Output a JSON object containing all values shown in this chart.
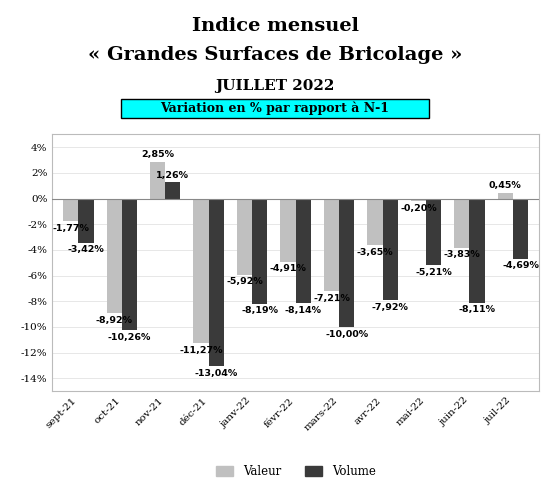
{
  "title_line1": "Indice mensuel",
  "title_line2": "« Grandes Surfaces de Bricolage »",
  "subtitle": "JUILLET 2022",
  "annotation": "Variation en % par rapport à N-1",
  "categories": [
    "sept-21",
    "oct-21",
    "nov-21",
    "déc-21",
    "janv-22",
    "févr-22",
    "mars-22",
    "avr-22",
    "mai-22",
    "juin-22",
    "juil-22"
  ],
  "valeur": [
    -1.77,
    -8.92,
    2.85,
    -11.27,
    -5.92,
    -4.91,
    -7.21,
    -3.65,
    -0.2,
    -3.83,
    0.45
  ],
  "volume": [
    -3.42,
    -10.26,
    1.26,
    -13.04,
    -8.19,
    -8.14,
    -10.0,
    -7.92,
    -5.21,
    -8.11,
    -4.69
  ],
  "valeur_color": "#c0c0c0",
  "volume_color": "#3a3a3a",
  "bar_width": 0.35,
  "ylim_min": -15,
  "ylim_max": 5,
  "yticks": [
    -14,
    -12,
    -10,
    -8,
    -6,
    -4,
    -2,
    0,
    2,
    4
  ],
  "ytick_labels": [
    "-14%",
    "-12%",
    "-10%",
    "-8%",
    "-6%",
    "-4%",
    "-2%",
    "0%",
    "2%",
    "4%"
  ],
  "background_color": "#ffffff",
  "chart_bg": "#ffffff",
  "annotation_bg": "#00ffff",
  "annotation_border": "#000000",
  "title_fontsize": 14,
  "subtitle_fontsize": 11,
  "annotation_fontsize": 9,
  "label_fontsize": 6.8,
  "tick_fontsize": 7.5,
  "legend_fontsize": 8.5
}
